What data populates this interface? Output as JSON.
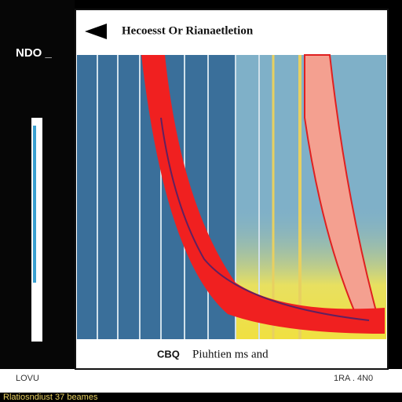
{
  "sidebar": {
    "label": "NDO _",
    "footer": "LOVU"
  },
  "panel": {
    "title": "Hecoesst Or Rianaetletion",
    "marker": "CBQ",
    "caption": "Piuhtien ms and",
    "corner": "1RA . 4N0"
  },
  "status_bar": {
    "text": "Rlatiosndiust 37 beames"
  }
}
